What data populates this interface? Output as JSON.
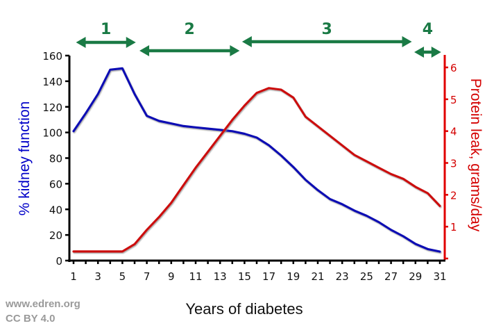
{
  "chart_data": {
    "type": "line",
    "title": "",
    "xlabel": "Years of diabetes",
    "ylabel": "% kidney function",
    "ylabel_right": "Protein leak, grams/day",
    "x": [
      1,
      2,
      3,
      4,
      5,
      6,
      7,
      8,
      9,
      10,
      11,
      12,
      13,
      14,
      15,
      16,
      17,
      18,
      19,
      20,
      21,
      22,
      23,
      24,
      25,
      26,
      27,
      28,
      29,
      30,
      31
    ],
    "xlim": [
      1,
      31
    ],
    "x_tick_labels": [
      "1",
      "3",
      "5",
      "7",
      "9",
      "11",
      "13",
      "15",
      "17",
      "19",
      "21",
      "23",
      "25",
      "27",
      "29",
      "31"
    ],
    "ylim": [
      0,
      160
    ],
    "y_tick_labels": [
      "0",
      "20",
      "40",
      "60",
      "80",
      "100",
      "120",
      "140",
      "160"
    ],
    "ylim_right": [
      0,
      6
    ],
    "y_right_tick_labels": [
      "",
      "1",
      "2",
      "3",
      "4",
      "5",
      "6"
    ],
    "grid": false,
    "series": [
      {
        "name": "% kidney function",
        "axis": "left",
        "color": "#0a0ab4",
        "values": [
          101,
          115,
          130,
          149,
          150,
          130,
          113,
          109,
          107,
          105,
          104,
          103,
          102,
          101,
          99,
          96,
          90,
          82,
          73,
          63,
          55,
          48,
          44,
          39,
          35,
          30,
          24,
          19,
          13,
          9,
          7
        ]
      },
      {
        "name": "Protein leak, grams/day",
        "axis": "right",
        "color": "#cc1111",
        "values": [
          0.22,
          0.22,
          0.22,
          0.22,
          0.22,
          0.45,
          0.9,
          1.3,
          1.75,
          2.3,
          2.85,
          3.35,
          3.85,
          4.35,
          4.8,
          5.2,
          5.35,
          5.3,
          5.05,
          4.45,
          4.15,
          3.85,
          3.55,
          3.25,
          3.05,
          2.85,
          2.65,
          2.5,
          2.25,
          2.05,
          1.65
        ]
      }
    ],
    "annotations": [
      {
        "label": "1",
        "from_year": 1.2,
        "to_year": 6.1,
        "type": "double-arrow"
      },
      {
        "label": "2",
        "from_year": 6.4,
        "to_year": 14.6,
        "type": "double-arrow"
      },
      {
        "label": "3",
        "from_year": 14.8,
        "to_year": 28.7,
        "type": "double-arrow"
      },
      {
        "label": "4",
        "from_year": 28.9,
        "to_year": 31.1,
        "type": "double-arrow"
      }
    ],
    "colors": {
      "annotation": "#1a7a45",
      "left_axis": "#000000",
      "right_axis": "#e00000"
    }
  },
  "credits": {
    "site": "www.edren.org",
    "license": "CC BY 4.0"
  }
}
